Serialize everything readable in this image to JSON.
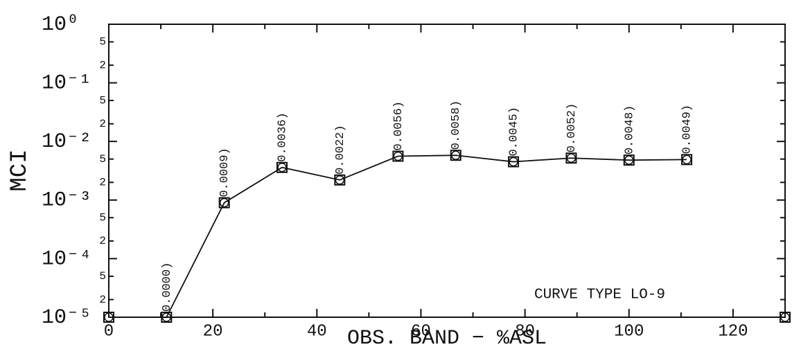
{
  "chart_data": {
    "type": "line",
    "xlabel": "OBS. BAND − %ASL",
    "ylabel": "MCI",
    "annotation": "CURVE TYPE LO-9",
    "x": [
      11.1,
      22.2,
      33.3,
      44.4,
      55.6,
      66.7,
      77.8,
      88.9,
      100,
      111.1
    ],
    "values": [
      1e-05,
      0.0009,
      0.0036,
      0.0022,
      0.0056,
      0.0058,
      0.0045,
      0.0052,
      0.0048,
      0.0049
    ],
    "value_labels": [
      "0.0000)",
      "0.0009)",
      "0.0036)",
      "0.0022)",
      "0.0056)",
      "0.0058)",
      "0.0045)",
      "0.0052)",
      "0.0048)",
      "0.0049)"
    ],
    "markers": {
      "x": [
        0,
        130
      ],
      "values": [
        1e-05,
        1e-05
      ]
    },
    "color": "#111",
    "log_y": true,
    "xlim": [
      0,
      130
    ],
    "xticks": [
      0,
      20,
      40,
      60,
      80,
      100,
      120
    ],
    "xminor": [
      10,
      30,
      50,
      70,
      90,
      110,
      130
    ],
    "ylim": [
      1e-05,
      1
    ],
    "yticks": [
      {
        "value": 1e-05,
        "label": "10⁻⁵"
      },
      {
        "value": 0.0001,
        "label": "10⁻⁴"
      },
      {
        "value": 0.001,
        "label": "10⁻³"
      },
      {
        "value": 0.01,
        "label": "10⁻²"
      },
      {
        "value": 0.1,
        "label": "10⁻¹"
      },
      {
        "value": 1,
        "label": "10⁰"
      }
    ],
    "yminor": [
      {
        "value": 2e-05,
        "label": "2"
      },
      {
        "value": 5e-05,
        "label": "5"
      },
      {
        "value": 0.0002,
        "label": "2"
      },
      {
        "value": 0.0005,
        "label": "5"
      },
      {
        "value": 0.002,
        "label": "2"
      },
      {
        "value": 0.005,
        "label": "5"
      },
      {
        "value": 0.02,
        "label": "2"
      },
      {
        "value": 0.05,
        "label": "5"
      },
      {
        "value": 0.2,
        "label": "2"
      },
      {
        "value": 0.5,
        "label": "5"
      }
    ]
  }
}
